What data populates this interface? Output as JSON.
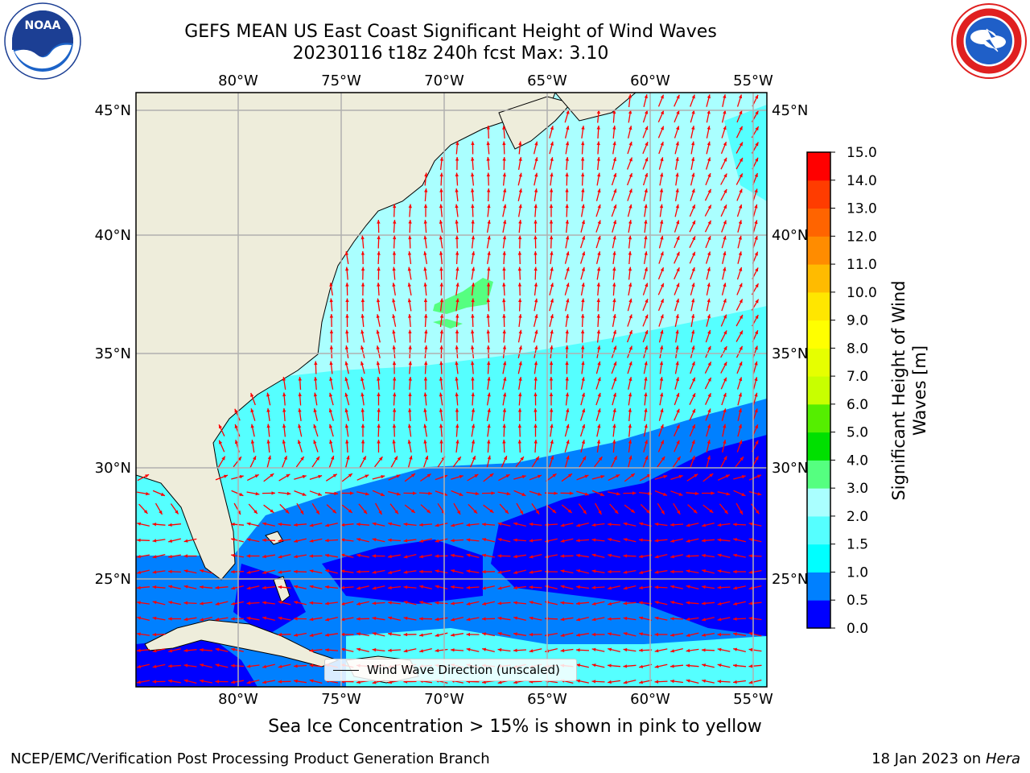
{
  "title_line1": "GEFS MEAN US East Coast Significant Height of Wind Waves",
  "title_line2": "20230116 t18z 240h fcst   Max: 3.10",
  "logos": {
    "left": "noaa-logo",
    "left_text": "NOAA",
    "right": "nws-logo"
  },
  "map": {
    "lon_labels": [
      "80°W",
      "75°W",
      "70°W",
      "65°W",
      "60°W",
      "55°W"
    ],
    "lat_labels": [
      "45°N",
      "40°N",
      "35°N",
      "30°N",
      "25°N"
    ],
    "legend_label": "Wind Wave Direction (unscaled)",
    "colors": {
      "land": "#eeeddb",
      "arrow": "#ff0000",
      "grid": "#b0b0b0"
    }
  },
  "colorbar": {
    "label": "Significant Height of Wind Waves [m]",
    "ticks": [
      "0.0",
      "0.5",
      "1.0",
      "1.5",
      "2.0",
      "3.0",
      "4.0",
      "5.0",
      "6.0",
      "7.0",
      "8.0",
      "9.0",
      "10.0",
      "11.0",
      "12.0",
      "13.0",
      "14.0",
      "15.0"
    ],
    "colors": [
      "#0000ff",
      "#0080ff",
      "#00ffff",
      "#55ffff",
      "#aaffff",
      "#55ff80",
      "#00e000",
      "#55ee00",
      "#c8ff00",
      "#e6ff00",
      "#ffff00",
      "#ffe600",
      "#ffbb00",
      "#ff8c00",
      "#ff6400",
      "#ff3c00",
      "#ff0000"
    ]
  },
  "footer_note": "Sea Ice Concentration > 15% is shown in pink to yellow",
  "credit": "NCEP/EMC/Verification Post Processing Product Generation Branch",
  "date_prefix": "18 Jan 2023 on",
  "machine": "Hera"
}
